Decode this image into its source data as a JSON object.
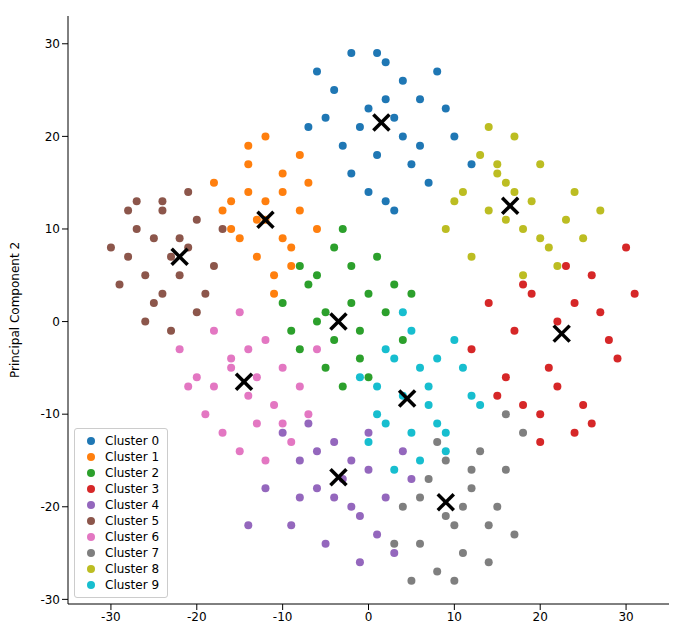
{
  "chart_data": {
    "type": "scatter",
    "ylabel": "Principal Component 2",
    "xlim": [
      -35,
      35
    ],
    "ylim": [
      -30.5,
      33
    ],
    "xticks": [
      -30,
      -20,
      -10,
      0,
      10,
      20,
      30
    ],
    "yticks": [
      -30,
      -20,
      -10,
      0,
      10,
      20,
      30
    ],
    "grid": false,
    "legend": "lower left",
    "series": [
      {
        "name": "Cluster 0",
        "color": "#1f77b4",
        "marker": "o",
        "x": [
          -6,
          -4,
          -2,
          0,
          2,
          4,
          6,
          8,
          10,
          -3,
          1,
          3,
          5,
          -1,
          7,
          9,
          -5,
          2,
          0,
          4,
          -2,
          6,
          12,
          1,
          3,
          -7,
          2
        ],
        "y": [
          27,
          25,
          29,
          23,
          28,
          26,
          24,
          27,
          20,
          19,
          18,
          22,
          17,
          21,
          15,
          23,
          22,
          24,
          14,
          20,
          16,
          19,
          17,
          29,
          12,
          21,
          13
        ]
      },
      {
        "name": "Cluster 1",
        "color": "#ff7f0e",
        "marker": "o",
        "x": [
          -18,
          -16,
          -14,
          -12,
          -10,
          -8,
          -6,
          -15,
          -13,
          -11,
          -9,
          -17,
          -14,
          -12,
          -10,
          -7,
          -13,
          -11,
          -16,
          -9,
          -12,
          -14,
          -8,
          -10
        ],
        "y": [
          15,
          13,
          17,
          11,
          14,
          12,
          10,
          9,
          7,
          5,
          8,
          12,
          19,
          20,
          16,
          15,
          11,
          3,
          10,
          6,
          13,
          14,
          18,
          9
        ]
      },
      {
        "name": "Cluster 2",
        "color": "#2ca02c",
        "marker": "o",
        "x": [
          -10,
          -8,
          -6,
          -4,
          -2,
          0,
          2,
          4,
          -9,
          -7,
          -5,
          -3,
          -1,
          1,
          3,
          -6,
          -4,
          -2,
          0,
          -8,
          -5,
          -3,
          -1,
          5
        ],
        "y": [
          2,
          -3,
          5,
          8,
          6,
          3,
          1,
          -2,
          -1,
          4,
          -5,
          -7,
          -4,
          7,
          4,
          0,
          -2,
          2,
          -6,
          6,
          1,
          10,
          -1,
          3
        ]
      },
      {
        "name": "Cluster 3",
        "color": "#d62728",
        "marker": "o",
        "x": [
          12,
          14,
          16,
          18,
          20,
          22,
          24,
          26,
          28,
          30,
          15,
          17,
          19,
          21,
          23,
          25,
          27,
          29,
          20,
          22,
          24,
          26,
          18,
          31
        ],
        "y": [
          -3,
          2,
          -6,
          4,
          -10,
          0,
          -12,
          5,
          -2,
          8,
          -8,
          -1,
          3,
          -5,
          6,
          -9,
          1,
          -4,
          -13,
          -7,
          2,
          -11,
          -9,
          3
        ]
      },
      {
        "name": "Cluster 4",
        "color": "#9467bd",
        "marker": "o",
        "x": [
          -10,
          -8,
          -6,
          -4,
          -2,
          0,
          2,
          4,
          -9,
          -7,
          -5,
          -3,
          -1,
          1,
          3,
          -6,
          -4,
          -2,
          0,
          -8,
          -12,
          -14,
          5,
          -1
        ],
        "y": [
          -12,
          -15,
          -18,
          -13,
          -20,
          -16,
          -19,
          -14,
          -22,
          -11,
          -24,
          -17,
          -21,
          -23,
          -25,
          -14,
          -19,
          -15,
          -12,
          -19,
          -18,
          -22,
          -17,
          -26
        ]
      },
      {
        "name": "Cluster 5",
        "color": "#8c564b",
        "marker": "o",
        "x": [
          -30,
          -28,
          -26,
          -24,
          -22,
          -20,
          -18,
          -29,
          -27,
          -25,
          -23,
          -21,
          -19,
          -26,
          -24,
          -22,
          -20,
          -28,
          -25,
          -23,
          -21,
          -17,
          -27,
          -24
        ],
        "y": [
          8,
          12,
          5,
          13,
          9,
          11,
          6,
          4,
          10,
          2,
          7,
          14,
          3,
          0,
          12,
          5,
          1,
          7,
          9,
          -1,
          8,
          10,
          13,
          3
        ]
      },
      {
        "name": "Cluster 6",
        "color": "#e377c2",
        "marker": "o",
        "x": [
          -22,
          -20,
          -18,
          -16,
          -14,
          -12,
          -10,
          -8,
          -6,
          -21,
          -19,
          -17,
          -15,
          -13,
          -11,
          -9,
          -7,
          -16,
          -14,
          -12,
          -18,
          -15,
          -13,
          -10
        ],
        "y": [
          -3,
          -6,
          -1,
          -4,
          -8,
          -2,
          -5,
          -7,
          -3,
          -7,
          -10,
          -12,
          -14,
          -11,
          -9,
          -13,
          -10,
          -5,
          -3,
          -15,
          -7,
          1,
          -6,
          -11
        ]
      },
      {
        "name": "Cluster 7",
        "color": "#7f7f7f",
        "marker": "o",
        "x": [
          4,
          6,
          8,
          10,
          12,
          14,
          16,
          18,
          5,
          7,
          9,
          11,
          13,
          15,
          17,
          6,
          8,
          10,
          12,
          14,
          3,
          11,
          9,
          16
        ],
        "y": [
          -20,
          -24,
          -27,
          -22,
          -18,
          -26,
          -16,
          -12,
          -28,
          -17,
          -21,
          -25,
          -14,
          -20,
          -23,
          -19,
          -13,
          -28,
          -16,
          -22,
          -24,
          -20,
          -15,
          -10
        ]
      },
      {
        "name": "Cluster 8",
        "color": "#bcbd22",
        "marker": "o",
        "x": [
          9,
          11,
          13,
          15,
          17,
          19,
          21,
          23,
          25,
          27,
          12,
          14,
          16,
          18,
          20,
          22,
          24,
          10,
          14,
          16,
          18,
          20,
          15,
          17
        ],
        "y": [
          10,
          14,
          18,
          16,
          20,
          13,
          8,
          11,
          9,
          12,
          7,
          12,
          15,
          10,
          17,
          6,
          14,
          13,
          21,
          11,
          5,
          9,
          17,
          14
        ]
      },
      {
        "name": "Cluster 9",
        "color": "#17becf",
        "marker": "o",
        "x": [
          -1,
          1,
          3,
          5,
          7,
          9,
          11,
          13,
          0,
          2,
          4,
          6,
          8,
          10,
          12,
          1,
          3,
          5,
          7,
          9,
          2,
          6,
          4,
          8
        ],
        "y": [
          -6,
          -10,
          -4,
          -12,
          -7,
          -14,
          -5,
          -9,
          -13,
          -3,
          -8,
          -15,
          -11,
          -2,
          -8,
          -7,
          -16,
          -1,
          -9,
          -12,
          -11,
          -5,
          1,
          -4
        ]
      }
    ],
    "centroids": {
      "color": "#000000",
      "marker": "x",
      "x": [
        1.5,
        -12,
        -3.5,
        22.5,
        -3.5,
        -22,
        -14.5,
        9,
        16.5,
        4.5
      ],
      "y": [
        21.5,
        11,
        0,
        -1.3,
        -16.8,
        7,
        -6.5,
        -19.5,
        12.5,
        -8.3
      ]
    }
  }
}
